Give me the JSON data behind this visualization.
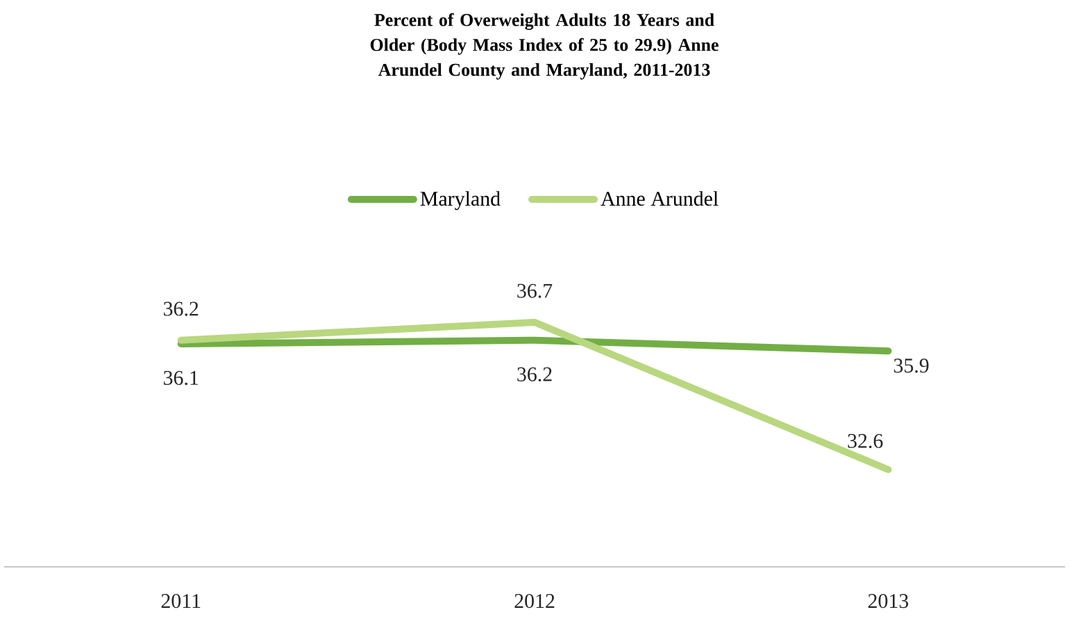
{
  "chart_data": {
    "type": "line",
    "title": "Percent of Overweight Adults 18 Years and Older (Body Mass Index of 25 to 29.9) Anne Arundel County and Maryland, 2011-2013",
    "categories": [
      "2011",
      "2012",
      "2013"
    ],
    "series": [
      {
        "name": "Maryland",
        "color": "#72ae45",
        "values": [
          36.1,
          36.2,
          35.9
        ]
      },
      {
        "name": "Anne Arundel",
        "color": "#b8d77f",
        "values": [
          36.2,
          36.7,
          32.6
        ]
      }
    ],
    "data_labels": true,
    "legend": "top",
    "tick_labels": "x"
  }
}
